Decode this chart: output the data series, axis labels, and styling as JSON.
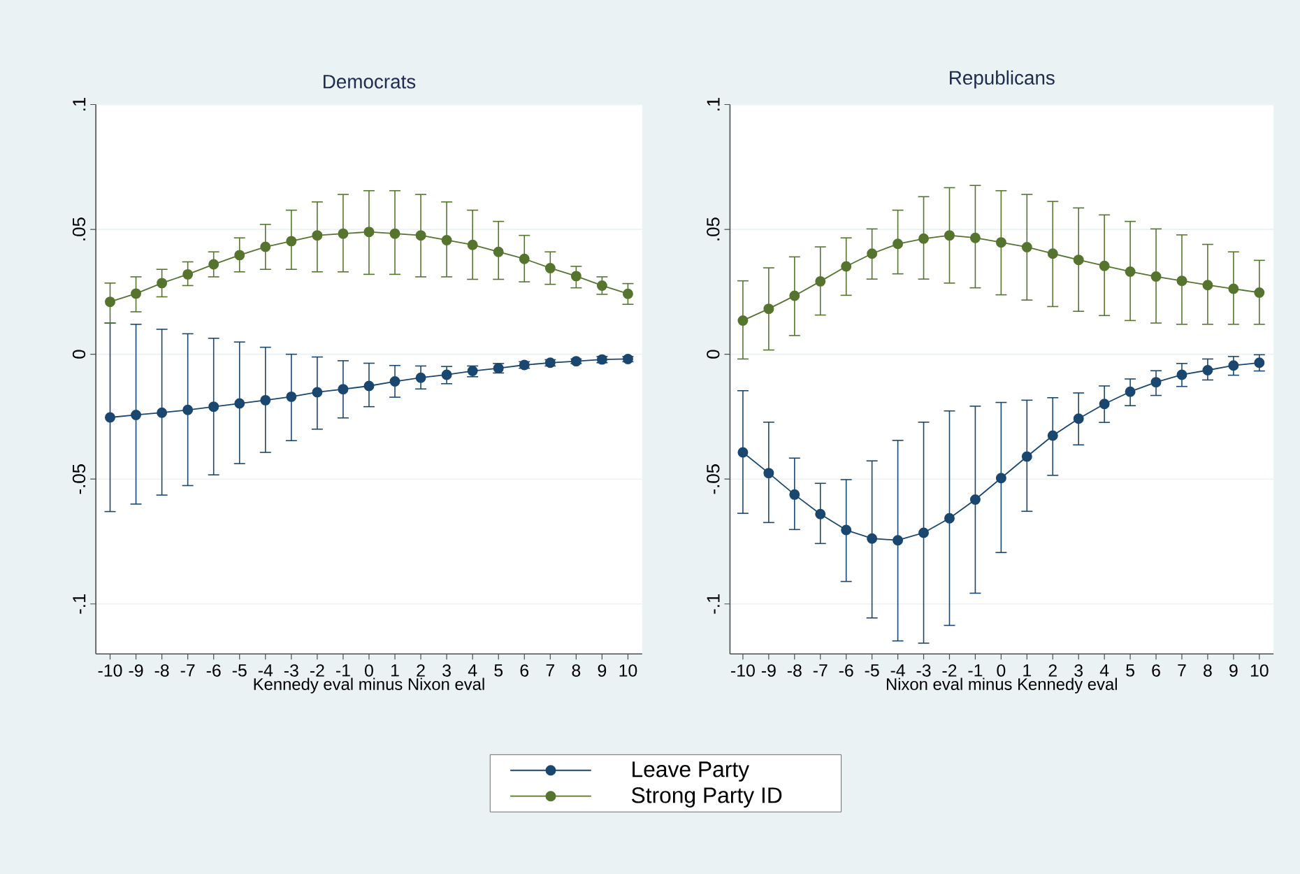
{
  "chart_data": [
    {
      "type": "line",
      "title": "Democrats",
      "xlabel": "Kennedy eval minus Nixon eval",
      "x": [
        -10,
        -9,
        -8,
        -7,
        -6,
        -5,
        -4,
        -3,
        -2,
        -1,
        0,
        1,
        2,
        3,
        4,
        5,
        6,
        7,
        8,
        9,
        10
      ],
      "series": [
        {
          "name": "Leave Party",
          "color": "#1a476f",
          "values": [
            -0.0253,
            -0.0243,
            -0.0234,
            -0.0223,
            -0.021,
            -0.0197,
            -0.0184,
            -0.017,
            -0.0152,
            -0.014,
            -0.0127,
            -0.0109,
            -0.0094,
            -0.0082,
            -0.0067,
            -0.0056,
            -0.0043,
            -0.0034,
            -0.0028,
            -0.0021,
            -0.0019
          ],
          "errors": [
            [
              -0.063,
              0.0125
            ],
            [
              -0.06,
              0.012
            ],
            [
              -0.0564,
              0.01
            ],
            [
              -0.0526,
              0.0082
            ],
            [
              -0.0483,
              0.0064
            ],
            [
              -0.0438,
              0.0049
            ],
            [
              -0.0393,
              0.0028
            ],
            [
              -0.0346,
              0.0
            ],
            [
              -0.03,
              -0.0011
            ],
            [
              -0.0255,
              -0.0026
            ],
            [
              -0.021,
              -0.0036
            ],
            [
              -0.0172,
              -0.0045
            ],
            [
              -0.0139,
              -0.0047
            ],
            [
              -0.0118,
              -0.0049
            ],
            [
              -0.009,
              -0.0047
            ],
            [
              -0.0075,
              -0.0037
            ],
            [
              -0.0056,
              -0.003
            ],
            [
              -0.0047,
              -0.0022
            ],
            [
              -0.0037,
              -0.0019
            ],
            [
              -0.0034,
              -0.0009
            ],
            [
              -0.003,
              -0.0009
            ]
          ]
        },
        {
          "name": "Strong Party ID",
          "color": "#55752f",
          "values": [
            0.021,
            0.0243,
            0.0285,
            0.032,
            0.036,
            0.0397,
            0.043,
            0.0453,
            0.0476,
            0.0483,
            0.049,
            0.0483,
            0.0476,
            0.0457,
            0.0438,
            0.041,
            0.0382,
            0.0345,
            0.0313,
            0.0275,
            0.0242
          ],
          "errors": [
            [
              0.0125,
              0.0285
            ],
            [
              0.017,
              0.031
            ],
            [
              0.023,
              0.034
            ],
            [
              0.0275,
              0.037
            ],
            [
              0.031,
              0.041
            ],
            [
              0.033,
              0.0466
            ],
            [
              0.034,
              0.052
            ],
            [
              0.034,
              0.0577
            ],
            [
              0.033,
              0.061
            ],
            [
              0.033,
              0.064
            ],
            [
              0.032,
              0.0655
            ],
            [
              0.032,
              0.0655
            ],
            [
              0.031,
              0.064
            ],
            [
              0.031,
              0.061
            ],
            [
              0.03,
              0.0577
            ],
            [
              0.03,
              0.0532
            ],
            [
              0.029,
              0.0476
            ],
            [
              0.028,
              0.041
            ],
            [
              0.0266,
              0.0352
            ],
            [
              0.024,
              0.031
            ],
            [
              0.02,
              0.0283
            ]
          ]
        }
      ],
      "xlim": [
        -10.55,
        10.55
      ],
      "ylim": [
        -0.12,
        0.1
      ],
      "xticks": [
        -10,
        -9,
        -8,
        -7,
        -6,
        -5,
        -4,
        -3,
        -2,
        -1,
        0,
        1,
        2,
        3,
        4,
        5,
        6,
        7,
        8,
        9,
        10
      ],
      "yticks": [
        {
          "value": 0.1,
          "label": ".1"
        },
        {
          "value": 0.05,
          "label": ".05"
        },
        {
          "value": 0,
          "label": "0"
        },
        {
          "value": -0.05,
          "label": "-.05"
        },
        {
          "value": -0.1,
          "label": "-.1"
        }
      ],
      "grid": "y",
      "marker": "circle",
      "line_style": "solid",
      "legend": "bottom"
    },
    {
      "type": "line",
      "title": "Republicans",
      "xlabel": "Nixon eval minus Kennedy eval",
      "x": [
        -10,
        -9,
        -8,
        -7,
        -6,
        -5,
        -4,
        -3,
        -2,
        -1,
        0,
        1,
        2,
        3,
        4,
        5,
        6,
        7,
        8,
        9,
        10
      ],
      "series": [
        {
          "color": "#1a476f",
          "values": [
            -0.0393,
            -0.0476,
            -0.0562,
            -0.064,
            -0.0704,
            -0.0738,
            -0.0745,
            -0.0715,
            -0.0657,
            -0.0582,
            -0.0496,
            -0.041,
            -0.0326,
            -0.0258,
            -0.0199,
            -0.015,
            -0.0112,
            -0.0082,
            -0.0064,
            -0.0045,
            -0.0034
          ],
          "errors": [
            [
              -0.0637,
              -0.0146
            ],
            [
              -0.0674,
              -0.0272
            ],
            [
              -0.0702,
              -0.0416
            ],
            [
              -0.0758,
              -0.0517
            ],
            [
              -0.091,
              -0.0502
            ],
            [
              -0.1056,
              -0.0427
            ],
            [
              -0.1148,
              -0.0345
            ],
            [
              -0.1157,
              -0.0272
            ],
            [
              -0.1086,
              -0.0227
            ],
            [
              -0.0957,
              -0.0208
            ],
            [
              -0.0794,
              -0.0193
            ],
            [
              -0.0629,
              -0.0184
            ],
            [
              -0.0485,
              -0.0174
            ],
            [
              -0.0363,
              -0.0155
            ],
            [
              -0.0273,
              -0.0127
            ],
            [
              -0.0206,
              -0.0099
            ],
            [
              -0.0165,
              -0.0066
            ],
            [
              -0.0129,
              -0.0037
            ],
            [
              -0.0103,
              -0.0019
            ],
            [
              -0.0084,
              -0.0009
            ],
            [
              -0.0067,
              -0.0002
            ]
          ]
        },
        {
          "color": "#55752f",
          "values": [
            0.0135,
            0.0182,
            0.0234,
            0.0292,
            0.0352,
            0.0403,
            0.0442,
            0.0463,
            0.0476,
            0.0466,
            0.0448,
            0.0429,
            0.0403,
            0.0378,
            0.0354,
            0.0331,
            0.0311,
            0.0294,
            0.0277,
            0.0262,
            0.0247
          ],
          "errors": [
            [
              -0.0019,
              0.0294
            ],
            [
              0.0017,
              0.0346
            ],
            [
              0.0075,
              0.039
            ],
            [
              0.0157,
              0.043
            ],
            [
              0.0236,
              0.0466
            ],
            [
              0.0301,
              0.0502
            ],
            [
              0.0322,
              0.0577
            ],
            [
              0.0301,
              0.0631
            ],
            [
              0.0285,
              0.0667
            ],
            [
              0.0266,
              0.0676
            ],
            [
              0.0238,
              0.0655
            ],
            [
              0.0217,
              0.064
            ],
            [
              0.0191,
              0.0612
            ],
            [
              0.0172,
              0.0586
            ],
            [
              0.0155,
              0.0558
            ],
            [
              0.0135,
              0.0532
            ],
            [
              0.0125,
              0.0502
            ],
            [
              0.012,
              0.0478
            ],
            [
              0.012,
              0.044
            ],
            [
              0.012,
              0.041
            ],
            [
              0.012,
              0.0376
            ]
          ]
        }
      ],
      "xlim": [
        -10.5,
        10.55
      ],
      "ylim": [
        -0.12,
        0.1
      ],
      "xticks": [
        -10,
        -9,
        -8,
        -7,
        -6,
        -5,
        -4,
        -3,
        -2,
        -1,
        0,
        1,
        2,
        3,
        4,
        5,
        6,
        7,
        8,
        9,
        10
      ],
      "yticks": [
        {
          "value": 0.1,
          "label": ".1"
        },
        {
          "value": 0.05,
          "label": ".05"
        },
        {
          "value": 0,
          "label": "0"
        },
        {
          "value": -0.05,
          "label": "-.05"
        },
        {
          "value": -0.1,
          "label": "-.1"
        }
      ],
      "grid": "y",
      "marker": "circle",
      "line_style": "solid"
    }
  ]
}
